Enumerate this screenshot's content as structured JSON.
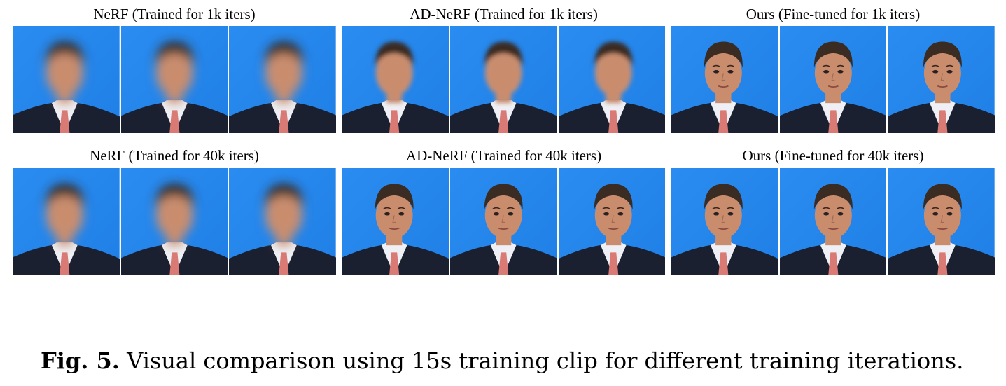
{
  "figure": {
    "rows": [
      {
        "panels": [
          {
            "title": "NeRF (Trained for 1k iters)",
            "quality": "very-blurry",
            "frames": 3
          },
          {
            "title": "AD-NeRF (Trained for 1k iters)",
            "quality": "blurry",
            "frames": 3
          },
          {
            "title": "Ours (Fine-tuned for 1k iters)",
            "quality": "sharp",
            "frames": 3
          }
        ]
      },
      {
        "panels": [
          {
            "title": "NeRF (Trained for 40k iters)",
            "quality": "very-blurry",
            "frames": 3
          },
          {
            "title": "AD-NeRF (Trained for 40k iters)",
            "quality": "sharp",
            "frames": 3
          },
          {
            "title": "Ours (Fine-tuned for 40k iters)",
            "quality": "sharp",
            "frames": 3
          }
        ]
      }
    ],
    "caption": {
      "label": "Fig. 5.",
      "text": "Visual comparison using 15s training clip for different training iterations."
    }
  },
  "colors": {
    "background_blue": "#1f7fe6",
    "suit": "#1b2030",
    "shirt": "#eef0f5",
    "tie": "#d97a74",
    "skin": "#c98d6e",
    "hair": "#3a2c22"
  }
}
